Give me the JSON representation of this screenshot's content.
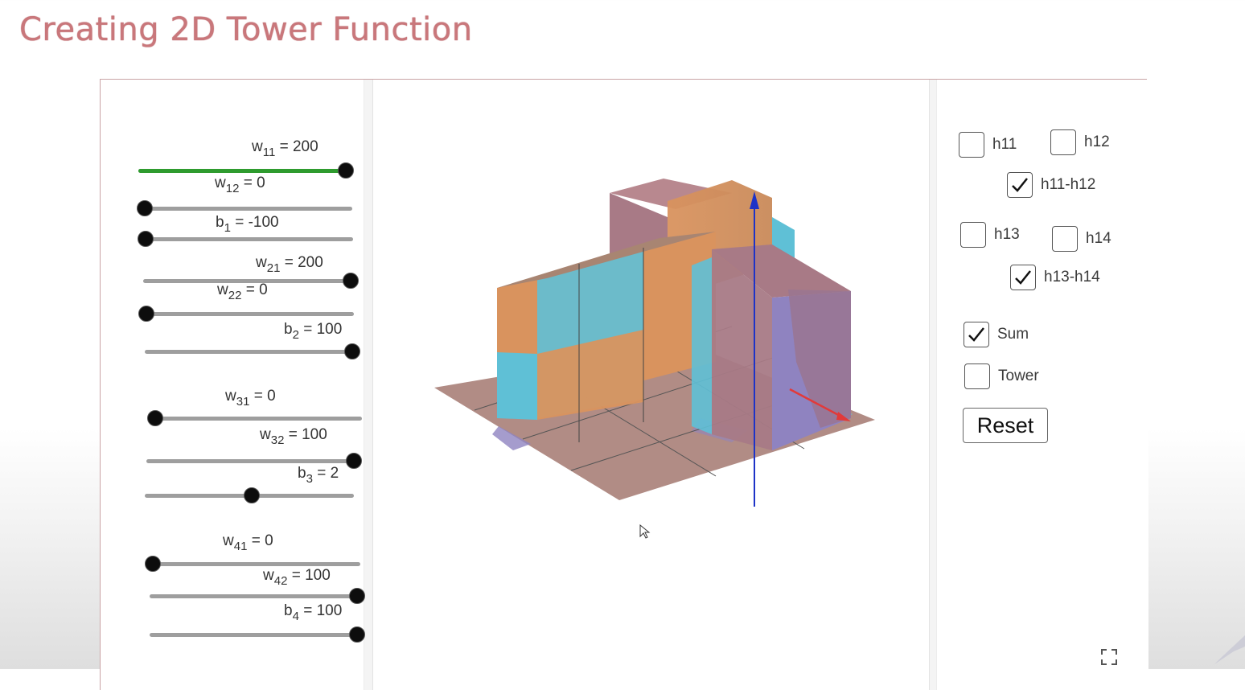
{
  "page_title": "Creating 2D Tower Function",
  "sliders": [
    {
      "var": "w",
      "sub": "11",
      "value": "200",
      "fraction": 1.0,
      "active": true
    },
    {
      "var": "w",
      "sub": "12",
      "value": "0",
      "fraction": 0.0,
      "active": false
    },
    {
      "var": "b",
      "sub": "1",
      "value": "-100",
      "fraction": 0.0,
      "active": false
    },
    {
      "var": "w",
      "sub": "21",
      "value": "200",
      "fraction": 1.0,
      "active": false
    },
    {
      "var": "w",
      "sub": "22",
      "value": "0",
      "fraction": 0.0,
      "active": false
    },
    {
      "var": "b",
      "sub": "2",
      "value": "100",
      "fraction": 1.0,
      "active": false
    },
    {
      "var": "w",
      "sub": "31",
      "value": "0",
      "fraction": 0.0,
      "active": false
    },
    {
      "var": "w",
      "sub": "32",
      "value": "100",
      "fraction": 1.0,
      "active": false
    },
    {
      "var": "b",
      "sub": "3",
      "value": "2",
      "fraction": 0.51,
      "active": false
    },
    {
      "var": "w",
      "sub": "41",
      "value": "0",
      "fraction": 0.0,
      "active": false
    },
    {
      "var": "w",
      "sub": "42",
      "value": "100",
      "fraction": 1.0,
      "active": false
    },
    {
      "var": "b",
      "sub": "4",
      "value": "100",
      "fraction": 1.0,
      "active": false
    }
  ],
  "checkboxes": [
    {
      "label": "h11",
      "checked": false
    },
    {
      "label": "h12",
      "checked": false
    },
    {
      "label": "h11-h12",
      "checked": true
    },
    {
      "label": "h13",
      "checked": false
    },
    {
      "label": "h14",
      "checked": false
    },
    {
      "label": "h13-h14",
      "checked": true
    },
    {
      "label": "Sum",
      "checked": true
    },
    {
      "label": "Tower",
      "checked": false
    }
  ],
  "reset_label": "Reset",
  "icons": {
    "fullscreen": "fullscreen-icon",
    "cursor": "mouse-cursor-icon",
    "axis_up": "z-axis-arrow-icon",
    "axis_x": "x-axis-arrow-icon"
  },
  "colors": {
    "title": "#c9777b",
    "active_slider": "#2e9b2e",
    "surface_orange": "#d9935e",
    "surface_cyan": "#5fc0d6",
    "surface_mauve": "#a87a86",
    "surface_purple": "#8f83c0",
    "axis_blue": "#1d33c7",
    "axis_red": "#e23a3a"
  }
}
